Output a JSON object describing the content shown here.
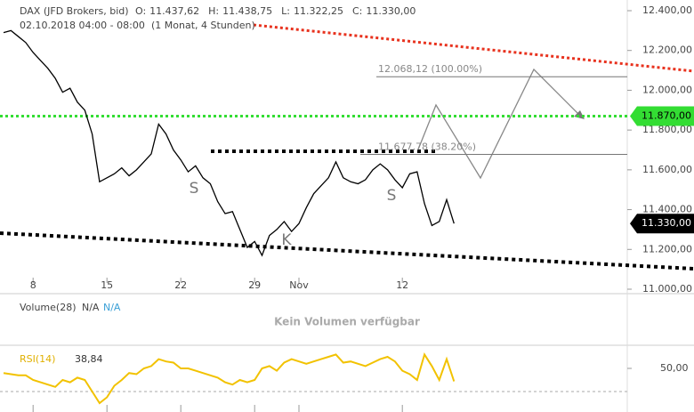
{
  "header": {
    "instrument": "DAX (JFD Brokers, bid)",
    "ohlc": [
      {
        "name": "O:",
        "value": 11437.62,
        "label": "11.437,62"
      },
      {
        "name": "H:",
        "value": 11438.75,
        "label": "11.438,75"
      },
      {
        "name": "L:",
        "value": 11322.25,
        "label": "11.322,25"
      },
      {
        "name": "C:",
        "value": 11330,
        "label": "11.330,00"
      }
    ],
    "period": "02.10.2018 04:00 - 08:00",
    "range": "(1 Monat, 4 Stunden)"
  },
  "volume": {
    "label": "Volume(28)",
    "values": [
      "N/A",
      "N/A"
    ],
    "message": "Kein Volumen verfügbar"
  },
  "chart_data": [
    {
      "type": "line",
      "categories": [
        null,
        null,
        null,
        null,
        "8",
        null,
        null,
        null,
        null,
        null,
        null,
        null,
        null,
        null,
        "15",
        null,
        null,
        null,
        null,
        null,
        null,
        null,
        null,
        null,
        "22",
        null,
        null,
        null,
        null,
        null,
        null,
        null,
        null,
        null,
        "29",
        null,
        null,
        null,
        null,
        null,
        "Nov",
        null,
        null,
        null,
        null,
        null,
        null,
        null,
        null,
        null,
        null,
        null,
        null,
        null,
        "12",
        null,
        null,
        null,
        null,
        null,
        null,
        null
      ],
      "series": [
        {
          "name": "DAX (JFD Brokers, bid)",
          "color": "#000000",
          "values": [
            12290,
            12300,
            12270,
            12240,
            12190,
            12150,
            12110,
            12060,
            11990,
            12010,
            11940,
            11900,
            11780,
            11540,
            11560,
            11580,
            11610,
            11570,
            11600,
            11640,
            11680,
            11830,
            11780,
            11700,
            11650,
            11590,
            11620,
            11560,
            11530,
            11440,
            11380,
            11390,
            11300,
            11210,
            11240,
            11170,
            11270,
            11300,
            11340,
            11290,
            11330,
            11410,
            11480,
            11520,
            11560,
            11640,
            11560,
            11540,
            11530,
            11550,
            11600,
            11630,
            11600,
            11550,
            11510,
            11580,
            11590,
            11430,
            11320,
            11340,
            11450,
            11330
          ]
        }
      ],
      "ylim": [
        11000,
        12400
      ],
      "yticks": [
        {
          "value": 11000,
          "label": "11.000,00"
        },
        {
          "value": 11200,
          "label": "11.200,00"
        },
        {
          "value": 11400,
          "label": "11.400,00"
        },
        {
          "value": 11600,
          "label": "11.600,00"
        },
        {
          "value": 11800,
          "label": "11.800,00"
        },
        {
          "value": 12000,
          "label": "12.000,00"
        },
        {
          "value": 12200,
          "label": "12.200,00"
        },
        {
          "value": 12400,
          "label": "12.400,00"
        }
      ],
      "fib_levels": [
        {
          "value": 12068.12,
          "label": "12.068,12 (100.00%)"
        },
        {
          "value": 11677.78,
          "label": "11.677,78 (38.20%)"
        }
      ],
      "price_tags": [
        {
          "value": 11870,
          "label": "11.870,00",
          "color": "#33dd33",
          "text_color": "#000000"
        },
        {
          "value": 11330,
          "label": "11.330,00",
          "color": "#000000",
          "text_color": "#ffffff"
        }
      ],
      "annotations": [
        "S",
        "S",
        "K"
      ]
    },
    {
      "type": "line",
      "series": [
        {
          "name": "RSI(14)",
          "color": "#f2c200",
          "values": [
            46,
            45,
            44,
            44,
            40,
            38,
            36,
            34,
            40,
            38,
            42,
            40,
            30,
            20,
            25,
            35,
            40,
            46,
            45,
            50,
            52,
            58,
            56,
            55,
            50,
            50,
            48,
            46,
            44,
            42,
            38,
            36,
            40,
            38,
            40,
            50,
            52,
            48,
            55,
            58,
            56,
            54,
            56,
            58,
            60,
            62,
            55,
            56,
            54,
            52,
            55,
            58,
            60,
            56,
            48,
            45,
            40,
            62,
            52,
            40,
            58,
            38.84
          ],
          "value_labels": [
            null,
            null,
            null,
            null,
            null,
            null,
            null,
            null,
            null,
            null,
            null,
            null,
            null,
            null,
            null,
            null,
            null,
            null,
            null,
            null,
            null,
            null,
            null,
            null,
            null,
            null,
            null,
            null,
            null,
            null,
            null,
            null,
            null,
            null,
            null,
            null,
            null,
            null,
            null,
            null,
            null,
            null,
            null,
            null,
            null,
            null,
            null,
            null,
            null,
            null,
            null,
            null,
            null,
            null,
            null,
            null,
            null,
            null,
            null,
            null,
            null,
            "38,84"
          ]
        }
      ],
      "ylim": [
        30,
        70
      ],
      "yticks": [
        {
          "value": 50,
          "label": "50,00"
        }
      ]
    }
  ]
}
